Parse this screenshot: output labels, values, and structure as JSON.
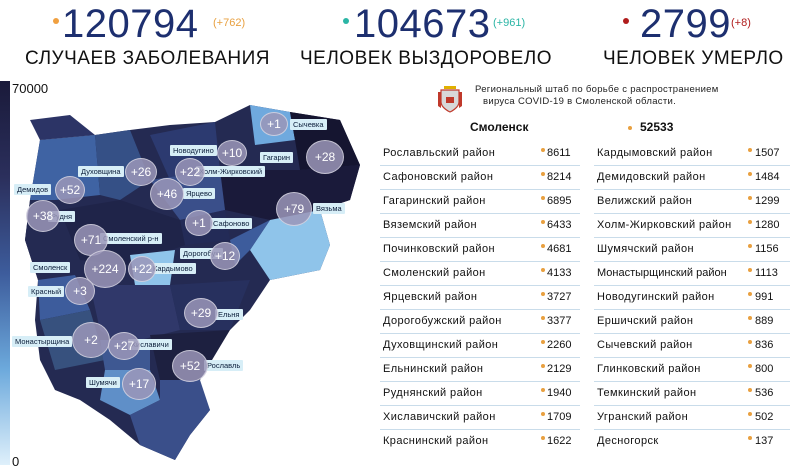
{
  "stats": [
    {
      "number": "120794",
      "delta": "(+762)",
      "label": "Случаев заболевания",
      "dot_color": "#f0a040",
      "delta_color": "#e8a040"
    },
    {
      "number": "104673",
      "delta": "(+961)",
      "label": "Человек выздоровело",
      "dot_color": "#2bb5a5",
      "delta_color": "#2bb5a5"
    },
    {
      "number": "2799",
      "delta": "(+8)",
      "label": "Человек умерло",
      "dot_color": "#b01c1c",
      "delta_color": "#b01c1c"
    }
  ],
  "legend": {
    "max": "70000",
    "min": "0"
  },
  "header": {
    "line1": "Региональный штаб по борьбе с распространением",
    "line2": "вируса  COVID-19 в Смоленской области."
  },
  "capital": {
    "name": "Смоленск",
    "value": "52533"
  },
  "table_left": [
    {
      "name": "Рославльский район",
      "value": "8611"
    },
    {
      "name": "Сафоновский район",
      "value": "8214"
    },
    {
      "name": "Гагаринский район",
      "value": "6895"
    },
    {
      "name": "Вяземский район",
      "value": "6433"
    },
    {
      "name": "Починковский район",
      "value": "4681"
    },
    {
      "name": "Смоленский район",
      "value": "4133"
    },
    {
      "name": "Ярцевский район",
      "value": "3727"
    },
    {
      "name": "Дорогобужский район",
      "value": "3377"
    },
    {
      "name": "Духовщинский район",
      "value": "2260"
    },
    {
      "name": "Ельнинский район",
      "value": "2129"
    },
    {
      "name": "Руднянский район",
      "value": "1940"
    },
    {
      "name": "Хиславичский район",
      "value": "1709"
    },
    {
      "name": "Краснинский район",
      "value": "1622"
    }
  ],
  "table_right": [
    {
      "name": "Кардымовский район",
      "value": "1507"
    },
    {
      "name": "Демидовский район",
      "value": "1484"
    },
    {
      "name": "Велижский район",
      "value": "1299"
    },
    {
      "name": "Холм-Жирковский район",
      "value": "1280"
    },
    {
      "name": "Шумячский район",
      "value": "1156"
    },
    {
      "name": "Монастырщинский район",
      "value": "1113"
    },
    {
      "name": "Новодугинский район",
      "value": "991"
    },
    {
      "name": "Ершичский район",
      "value": "889"
    },
    {
      "name": "Сычевский район",
      "value": "836"
    },
    {
      "name": "Глинковский район",
      "value": "800"
    },
    {
      "name": "Темкинский район",
      "value": "536"
    },
    {
      "name": "Угранский район",
      "value": "502"
    },
    {
      "name": "Десногорск",
      "value": "137"
    }
  ],
  "map_labels": [
    {
      "id": "sychevka",
      "text": "Сычевка",
      "bubble": "+1"
    },
    {
      "id": "novodugino",
      "text": "Новодугино",
      "bubble": "+10"
    },
    {
      "id": "gagarin",
      "text": "Гагарин",
      "bubble": "+28"
    },
    {
      "id": "dukhovshchina",
      "text": "Духовщина",
      "bubble": "+26"
    },
    {
      "id": "kholm",
      "text": "Холм-Жирковский",
      "bubble": "+22"
    },
    {
      "id": "demidov",
      "text": "Демидов",
      "bubble": "+52"
    },
    {
      "id": "yartsevo",
      "text": "Ярцево",
      "bubble": "+46"
    },
    {
      "id": "vyazma",
      "text": "Вязьма",
      "bubble": "+79"
    },
    {
      "id": "rudnya",
      "text": "Рудня",
      "bubble": "+38"
    },
    {
      "id": "safonovo",
      "text": "Сафоново",
      "bubble": "+1"
    },
    {
      "id": "smolensky",
      "text": "Смоленский р-н",
      "bubble": "+71"
    },
    {
      "id": "dorogobuzh",
      "text": "Дорогобуж",
      "bubble": "+12"
    },
    {
      "id": "smolensk",
      "text": "Смоленск",
      "bubble": "+224"
    },
    {
      "id": "kardymovo",
      "text": "Кардымово",
      "bubble": "+22"
    },
    {
      "id": "krasny",
      "text": "Красный",
      "bubble": "+3"
    },
    {
      "id": "yelnya",
      "text": "Ельня",
      "bubble": "+29"
    },
    {
      "id": "monastyrshchina",
      "text": "Монастырщина",
      "bubble": "+2"
    },
    {
      "id": "khislavichi",
      "text": "Хиславичи",
      "bubble": "+27"
    },
    {
      "id": "roslavl",
      "text": "Рославль",
      "bubble": "+52"
    },
    {
      "id": "shumyachi",
      "text": "Шумячи",
      "bubble": "+17"
    }
  ],
  "colors": {
    "number": "#1d2f6f",
    "row_line": "#c9dcea",
    "region_dark": "#1a1a3a",
    "region_light": "#8fc4ea"
  }
}
